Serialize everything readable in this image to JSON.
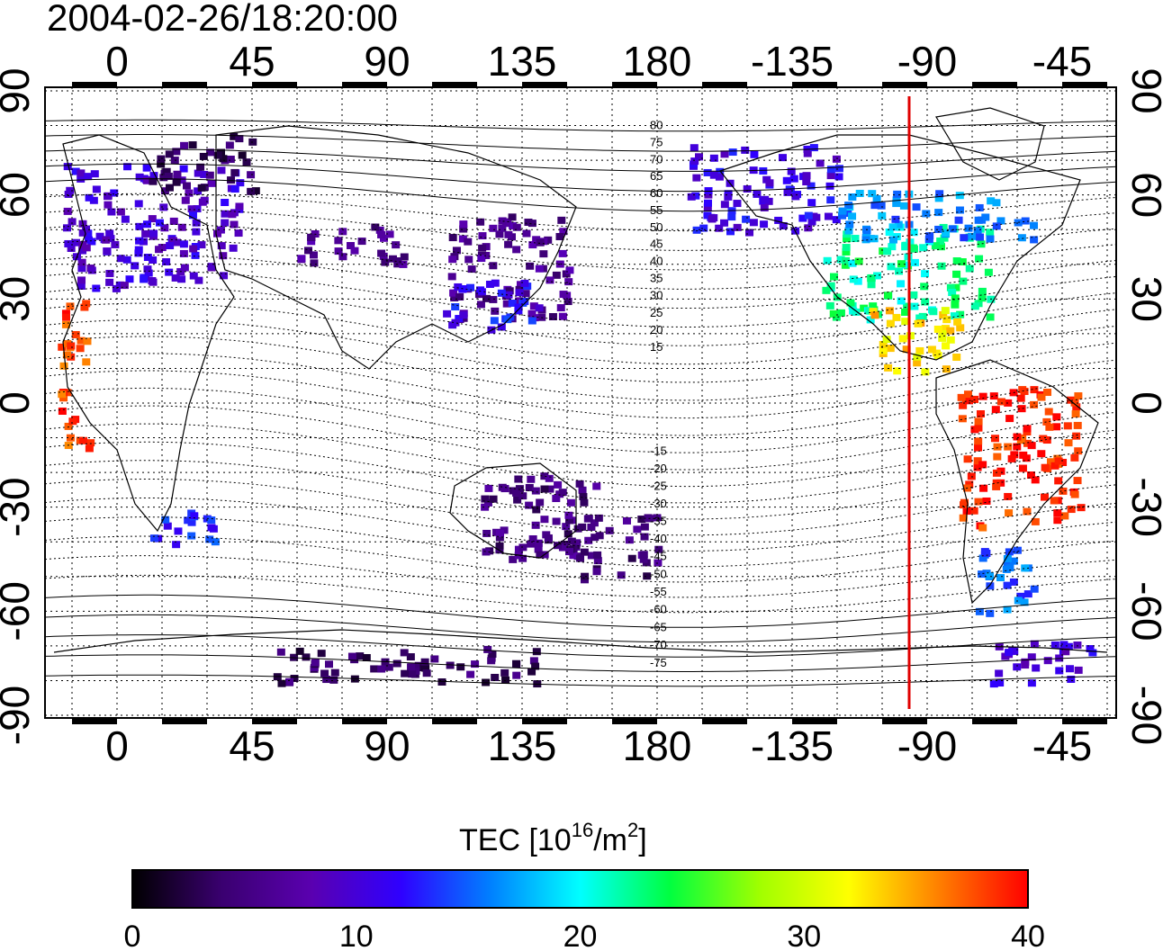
{
  "title": "2004-02-26/18:20:00",
  "lon_ticks": [
    "0",
    "45",
    "90",
    "135",
    "180",
    "-135",
    "-90",
    "-45"
  ],
  "lat_ticks": [
    "90",
    "60",
    "30",
    "0",
    "-30",
    "-60",
    "-90"
  ],
  "mlat_labels": [
    "80",
    "75",
    "70",
    "65",
    "60",
    "55",
    "50",
    "45",
    "40",
    "35",
    "30",
    "25",
    "20",
    "15",
    "-15",
    "-20",
    "-25",
    "-30",
    "-35",
    "-40",
    "-45",
    "-50",
    "-55",
    "-60",
    "-65",
    "-70",
    "-75"
  ],
  "colorbar": {
    "label_main": "TEC  [10",
    "label_exp1": "16",
    "label_mid": "/m",
    "label_exp2": "2",
    "label_end": "]",
    "ticks": [
      "0",
      "10",
      "20",
      "30",
      "40"
    ],
    "stops": [
      "#000000",
      "#3a0070",
      "#5a00b0",
      "#2f00ff",
      "#0080ff",
      "#00ffff",
      "#00ff40",
      "#a0ff00",
      "#ffff00",
      "#ff8000",
      "#ff0000"
    ]
  },
  "terminator": {
    "longitude": -96,
    "color": "#e00000"
  },
  "chart_data": {
    "type": "heatmap",
    "title": "2004-02-26/18:20:00",
    "xlim": [
      -25,
      335
    ],
    "ylim": [
      -90,
      90
    ],
    "colorscale_range": [
      0,
      40
    ],
    "regions": [
      {
        "tec": 10,
        "lon": [
          -18,
          40
        ],
        "lat": [
          34,
          70
        ]
      },
      {
        "tec": 4,
        "lon": [
          10,
          45
        ],
        "lat": [
          62,
          78
        ]
      },
      {
        "tec": 6,
        "lon": [
          60,
          95
        ],
        "lat": [
          40,
          52
        ]
      },
      {
        "tec": 6,
        "lon": [
          110,
          150
        ],
        "lat": [
          25,
          55
        ]
      },
      {
        "tec": 12,
        "lon": [
          108,
          140
        ],
        "lat": [
          22,
          36
        ]
      },
      {
        "tec": 11,
        "lon": [
          -170,
          -120
        ],
        "lat": [
          50,
          75
        ]
      },
      {
        "tec": 22,
        "lon": [
          -125,
          -70
        ],
        "lat": [
          25,
          52
        ]
      },
      {
        "tec": 16,
        "lon": [
          -120,
          -55
        ],
        "lat": [
          48,
          62
        ]
      },
      {
        "tec": 33,
        "lon": [
          -110,
          -80
        ],
        "lat": [
          10,
          28
        ]
      },
      {
        "tec": 39,
        "lon": [
          -80,
          -40
        ],
        "lat": [
          -35,
          5
        ]
      },
      {
        "tec": 15,
        "lon": [
          -75,
          -55
        ],
        "lat": [
          -60,
          -40
        ]
      },
      {
        "tec": 5,
        "lon": [
          150,
          180
        ],
        "lat": [
          -50,
          -30
        ]
      },
      {
        "tec": 5,
        "lon": [
          120,
          160
        ],
        "lat": [
          -45,
          -20
        ]
      },
      {
        "tec": 4,
        "lon": [
          50,
          140
        ],
        "lat": [
          -80,
          -70
        ]
      },
      {
        "tec": 10,
        "lon": [
          -70,
          -35
        ],
        "lat": [
          -80,
          -68
        ]
      },
      {
        "tec": 13,
        "lon": [
          10,
          35
        ],
        "lat": [
          -40,
          -30
        ]
      },
      {
        "tec": 38,
        "lon": [
          -20,
          -10
        ],
        "lat": [
          -15,
          30
        ]
      }
    ]
  }
}
